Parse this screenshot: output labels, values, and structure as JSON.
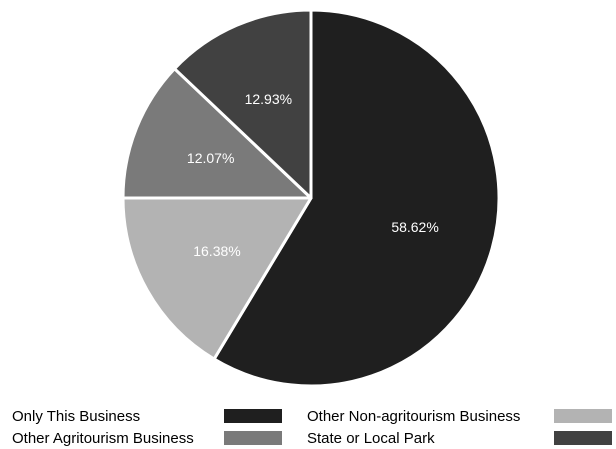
{
  "chart_data": {
    "type": "pie",
    "title": "",
    "slices": [
      {
        "label": "Only This Business",
        "value": 58.62,
        "value_label": "58.62%",
        "color": "#1f1f1f"
      },
      {
        "label": "Other Non-agritourism Business",
        "value": 16.38,
        "value_label": "16.38%",
        "color": "#b3b3b3"
      },
      {
        "label": "Other Agritourism Business",
        "value": 12.07,
        "value_label": "12.07%",
        "color": "#7a7a7a"
      },
      {
        "label": "State or Local Park",
        "value": 12.93,
        "value_label": "12.93%",
        "color": "#414141"
      }
    ],
    "start_angle_deg": 0,
    "direction": "clockwise",
    "slice_border_color": "#ffffff",
    "legend": {
      "placement": "bottom",
      "columns": 2,
      "order": [
        "Only This Business",
        "Other Non-agritourism Business",
        "Other Agritourism Business",
        "State or Local Park"
      ]
    }
  }
}
